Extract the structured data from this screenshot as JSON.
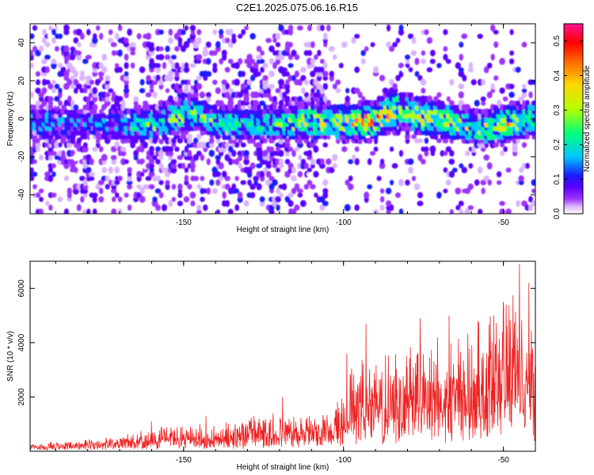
{
  "title": "C2E1.2025.075.06.16.R15",
  "colors": {
    "snr_line": "#ee2222",
    "spectrogram_scale": [
      "#ffffff",
      "#d9b3ff",
      "#9b30ff",
      "#5a00ff",
      "#1a1aff",
      "#00c8ff",
      "#00ff80",
      "#b4ff00",
      "#ffd700",
      "#ff6a00",
      "#ff0000",
      "#ff1493"
    ]
  },
  "chart_data": [
    {
      "type": "heatmap",
      "name": "spectrogram",
      "xlabel": "Height of straight line (km)",
      "ylabel": "Frequency (Hz)",
      "xlim": [
        -198,
        -40
      ],
      "ylim": [
        -50,
        50
      ],
      "xticks": [
        -150,
        -100,
        -50
      ],
      "xtick_labels": [
        "-150",
        "-100",
        "-50"
      ],
      "yticks": [
        -40,
        -20,
        0,
        20,
        40
      ],
      "ytick_labels": [
        "-40",
        "-20",
        "0",
        "20",
        "40"
      ],
      "colorbar": {
        "label": "Normalized spectral amplitude",
        "range": [
          0,
          0.55
        ],
        "ticks": [
          0,
          0.1,
          0.2,
          0.3,
          0.4,
          0.5
        ],
        "tick_labels": [
          "0.0",
          "0.1",
          "0.2",
          "0.3",
          "0.4",
          "0.5"
        ]
      },
      "band_center_hz": [
        {
          "x": -195,
          "y": -2
        },
        {
          "x": -175,
          "y": -3
        },
        {
          "x": -160,
          "y": -3
        },
        {
          "x": -148,
          "y": 3
        },
        {
          "x": -138,
          "y": -2
        },
        {
          "x": -125,
          "y": -3
        },
        {
          "x": -110,
          "y": -1
        },
        {
          "x": -100,
          "y": -2
        },
        {
          "x": -90,
          "y": -1
        },
        {
          "x": -84,
          "y": 5
        },
        {
          "x": -75,
          "y": 1
        },
        {
          "x": -65,
          "y": -2
        },
        {
          "x": -57,
          "y": -6
        },
        {
          "x": -50,
          "y": -3
        },
        {
          "x": -42,
          "y": 0
        }
      ],
      "peak_amplitude": [
        {
          "x": -195,
          "y": 0.2
        },
        {
          "x": -180,
          "y": 0.15
        },
        {
          "x": -170,
          "y": 0.18
        },
        {
          "x": -160,
          "y": 0.3
        },
        {
          "x": -150,
          "y": 0.3
        },
        {
          "x": -140,
          "y": 0.25
        },
        {
          "x": -130,
          "y": 0.25
        },
        {
          "x": -120,
          "y": 0.28
        },
        {
          "x": -110,
          "y": 0.35
        },
        {
          "x": -100,
          "y": 0.35
        },
        {
          "x": -90,
          "y": 0.45
        },
        {
          "x": -80,
          "y": 0.35
        },
        {
          "x": -70,
          "y": 0.35
        },
        {
          "x": -60,
          "y": 0.3
        },
        {
          "x": -50,
          "y": 0.4
        },
        {
          "x": -42,
          "y": 0.3
        }
      ],
      "grid": false
    },
    {
      "type": "line",
      "name": "snr",
      "xlabel": "Height of straight line (km)",
      "ylabel": "SNR (10 * v/v)",
      "xlim": [
        -198,
        -40
      ],
      "ylim": [
        0,
        7000
      ],
      "xticks": [
        -150,
        -100,
        -50
      ],
      "xtick_labels": [
        "-150",
        "-100",
        "-50"
      ],
      "yticks": [
        2000,
        4000,
        6000
      ],
      "ytick_labels": [
        "2000",
        "4000",
        "6000"
      ],
      "baseline": [
        {
          "x": -198,
          "y": 150
        },
        {
          "x": -180,
          "y": 200
        },
        {
          "x": -165,
          "y": 300
        },
        {
          "x": -150,
          "y": 450
        },
        {
          "x": -140,
          "y": 350
        },
        {
          "x": -130,
          "y": 400
        },
        {
          "x": -120,
          "y": 550
        },
        {
          "x": -110,
          "y": 700
        },
        {
          "x": -102,
          "y": 800
        },
        {
          "x": -95,
          "y": 1200
        },
        {
          "x": -85,
          "y": 1300
        },
        {
          "x": -75,
          "y": 1400
        },
        {
          "x": -65,
          "y": 1500
        },
        {
          "x": -55,
          "y": 1600
        },
        {
          "x": -48,
          "y": 1800
        },
        {
          "x": -40,
          "y": 1700
        }
      ],
      "envelope": [
        {
          "x": -198,
          "y": 300
        },
        {
          "x": -185,
          "y": 400
        },
        {
          "x": -170,
          "y": 550
        },
        {
          "x": -160,
          "y": 1000
        },
        {
          "x": -150,
          "y": 1200
        },
        {
          "x": -140,
          "y": 900
        },
        {
          "x": -130,
          "y": 1300
        },
        {
          "x": -120,
          "y": 1500
        },
        {
          "x": -112,
          "y": 1400
        },
        {
          "x": -104,
          "y": 1600
        },
        {
          "x": -98,
          "y": 3300
        },
        {
          "x": -90,
          "y": 3800
        },
        {
          "x": -82,
          "y": 4200
        },
        {
          "x": -75,
          "y": 4400
        },
        {
          "x": -65,
          "y": 4400
        },
        {
          "x": -58,
          "y": 4900
        },
        {
          "x": -52,
          "y": 5300
        },
        {
          "x": -46,
          "y": 6800
        },
        {
          "x": -40,
          "y": 5800
        }
      ],
      "peaks": [
        {
          "x": -160,
          "y": 1100
        },
        {
          "x": -143,
          "y": 1300
        },
        {
          "x": -128,
          "y": 1300
        },
        {
          "x": -119,
          "y": 2000
        },
        {
          "x": -99,
          "y": 3600
        },
        {
          "x": -93,
          "y": 4700
        },
        {
          "x": -76,
          "y": 4900
        },
        {
          "x": -67,
          "y": 5000
        },
        {
          "x": -58,
          "y": 4800
        },
        {
          "x": -53,
          "y": 5000
        },
        {
          "x": -50,
          "y": 5500
        },
        {
          "x": -45,
          "y": 6900
        },
        {
          "x": -42,
          "y": 6200
        }
      ],
      "grid": false
    }
  ]
}
